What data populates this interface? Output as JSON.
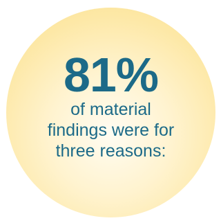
{
  "stat": {
    "value": "81%",
    "caption_lines": [
      "of material",
      "findings were for",
      "three reasons:"
    ],
    "text_color": "#1c6a88",
    "circle_color": "#fde8a6"
  }
}
